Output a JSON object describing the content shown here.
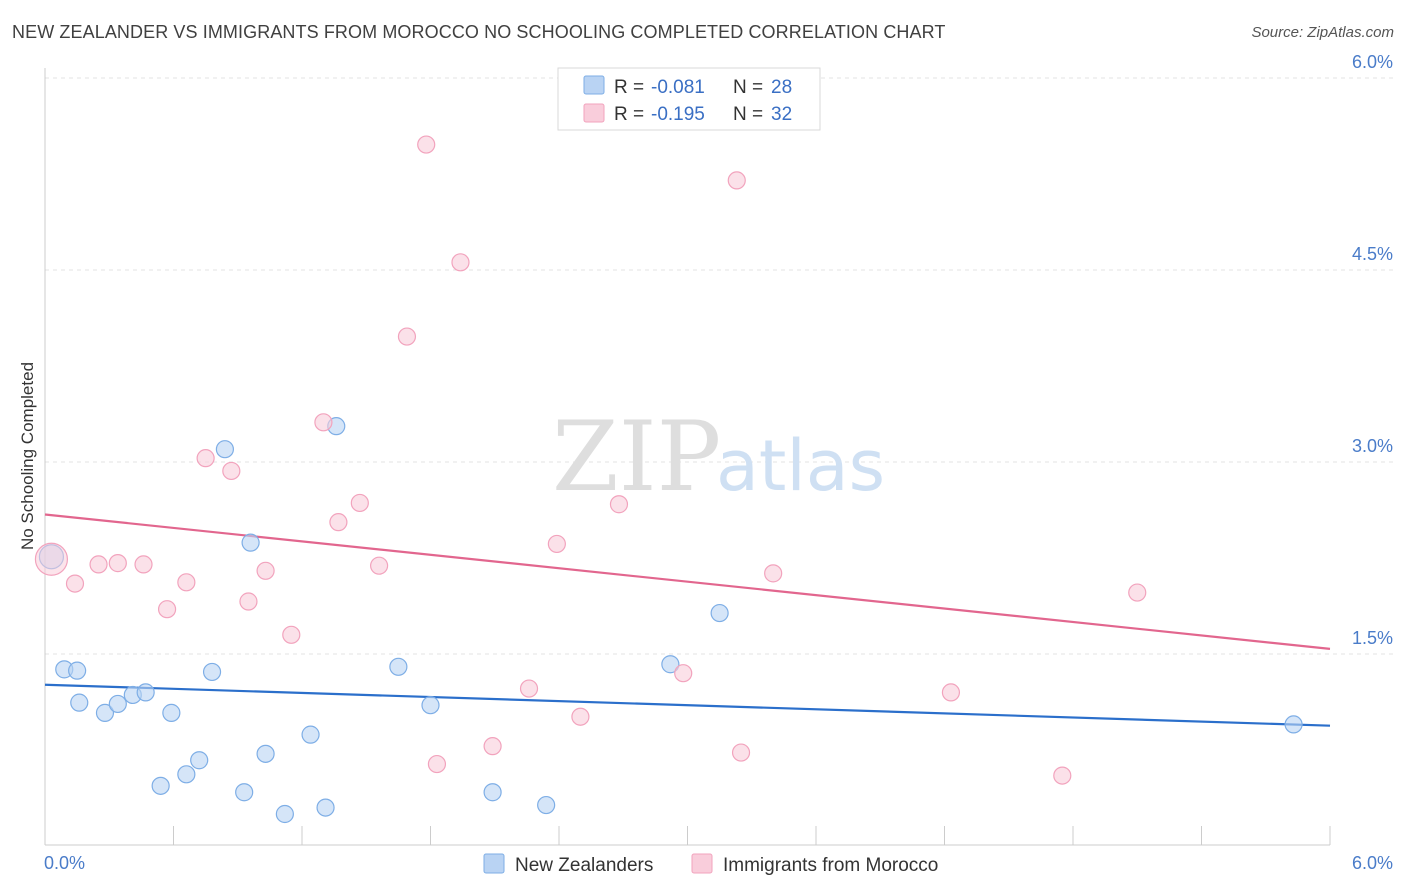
{
  "title": "NEW ZEALANDER VS IMMIGRANTS FROM MOROCCO NO SCHOOLING COMPLETED CORRELATION CHART",
  "source": "Source: ZipAtlas.com",
  "watermark": {
    "zip": "ZIP",
    "atlas": "atlas"
  },
  "chart_data": {
    "type": "scatter",
    "title": "NEW ZEALANDER VS IMMIGRANTS FROM MOROCCO NO SCHOOLING COMPLETED CORRELATION CHART",
    "xlabel": "",
    "ylabel": "No Schooling Completed",
    "xlim": [
      0.0,
      6.0
    ],
    "ylim": [
      0.0,
      6.25
    ],
    "x_tick_labels": [
      "0.0%",
      "6.0%"
    ],
    "y_ticks": [
      1.5,
      3.0,
      4.5,
      6.0
    ],
    "y_tick_labels": [
      "1.5%",
      "3.0%",
      "4.5%",
      "6.0%"
    ],
    "grid": "horizontal dashed",
    "legend_top": [
      {
        "r_label": "R = ",
        "r_value": "-0.081",
        "n_label": "N = ",
        "n_value": "28"
      },
      {
        "r_label": "R = ",
        "r_value": "-0.195",
        "n_label": "N = ",
        "n_value": "32"
      }
    ],
    "series": [
      {
        "name": "New Zealanders",
        "color": "#7eaee6",
        "fill": "#b9d3f3",
        "trend_color": "#2b6fcb",
        "trend": {
          "x0": 0.0,
          "y0": 1.26,
          "x1": 6.0,
          "y1": 0.94
        },
        "points": [
          [
            0.03,
            2.26
          ],
          [
            0.09,
            1.38
          ],
          [
            0.15,
            1.37
          ],
          [
            0.16,
            1.12
          ],
          [
            0.28,
            1.04
          ],
          [
            0.34,
            1.11
          ],
          [
            0.41,
            1.18
          ],
          [
            0.47,
            1.2
          ],
          [
            0.54,
            0.47
          ],
          [
            0.59,
            1.04
          ],
          [
            0.66,
            0.56
          ],
          [
            0.72,
            0.67
          ],
          [
            0.78,
            1.36
          ],
          [
            0.84,
            3.1
          ],
          [
            0.93,
            0.42
          ],
          [
            0.96,
            2.37
          ],
          [
            1.03,
            0.72
          ],
          [
            1.12,
            0.25
          ],
          [
            1.24,
            0.87
          ],
          [
            1.31,
            0.3
          ],
          [
            1.36,
            3.28
          ],
          [
            1.65,
            1.4
          ],
          [
            1.8,
            1.1
          ],
          [
            2.09,
            0.42
          ],
          [
            2.34,
            0.32
          ],
          [
            2.92,
            1.42
          ],
          [
            3.15,
            1.82
          ],
          [
            5.83,
            0.95
          ]
        ]
      },
      {
        "name": "Immigrants from Morocco",
        "color": "#f2a3bd",
        "fill": "#f9cddb",
        "trend_color": "#e2668e",
        "trend": {
          "x0": 0.0,
          "y0": 2.59,
          "x1": 6.0,
          "y1": 1.54
        },
        "points": [
          [
            0.03,
            2.24
          ],
          [
            0.14,
            2.05
          ],
          [
            0.25,
            2.2
          ],
          [
            0.34,
            2.21
          ],
          [
            0.46,
            2.2
          ],
          [
            0.57,
            1.85
          ],
          [
            0.66,
            2.06
          ],
          [
            0.75,
            3.03
          ],
          [
            0.87,
            2.93
          ],
          [
            0.95,
            1.91
          ],
          [
            1.03,
            2.15
          ],
          [
            1.15,
            1.65
          ],
          [
            1.3,
            3.31
          ],
          [
            1.37,
            2.53
          ],
          [
            1.47,
            2.68
          ],
          [
            1.56,
            2.19
          ],
          [
            1.69,
            3.98
          ],
          [
            1.78,
            5.48
          ],
          [
            1.83,
            0.64
          ],
          [
            1.94,
            4.56
          ],
          [
            2.09,
            0.78
          ],
          [
            2.26,
            1.23
          ],
          [
            2.39,
            2.36
          ],
          [
            2.5,
            1.01
          ],
          [
            2.68,
            2.67
          ],
          [
            2.98,
            1.35
          ],
          [
            3.23,
            5.2
          ],
          [
            3.25,
            0.73
          ],
          [
            3.4,
            2.13
          ],
          [
            4.23,
            1.2
          ],
          [
            4.75,
            0.55
          ],
          [
            5.1,
            1.98
          ]
        ]
      }
    ]
  }
}
